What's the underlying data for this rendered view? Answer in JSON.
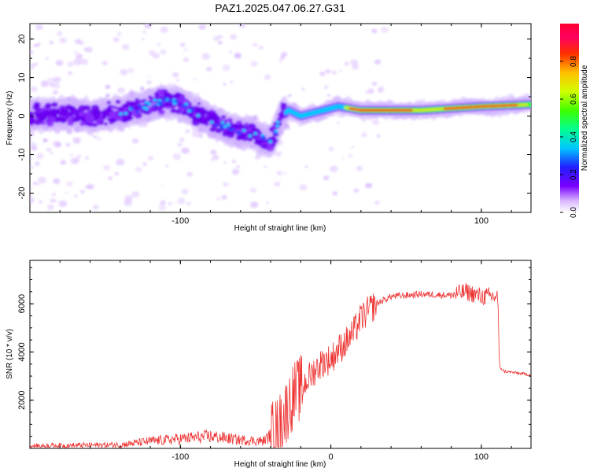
{
  "title": "PAZ1.2025.047.06.27.G31",
  "chart_data": [
    {
      "type": "heatmap",
      "xlabel": "Height of straight line (km)",
      "ylabel": "Frequency (Hz)",
      "xlim": [
        -200,
        133
      ],
      "ylim": [
        -25,
        24
      ],
      "xticks": [
        -100,
        100
      ],
      "yticks": [
        20,
        10,
        0,
        -10,
        -20
      ],
      "colorbar": {
        "label": "Normalized spectral amplitude",
        "range": [
          0,
          1
        ],
        "ticks": [
          "0.0",
          "0.2",
          "0.4",
          "0.6",
          "0.8"
        ],
        "colormap": "rainbow"
      },
      "ridge": [
        {
          "x": -200,
          "y": 0
        },
        {
          "x": -180,
          "y": 0.5
        },
        {
          "x": -160,
          "y": 0
        },
        {
          "x": -140,
          "y": 1
        },
        {
          "x": -120,
          "y": 3
        },
        {
          "x": -110,
          "y": 4
        },
        {
          "x": -100,
          "y": 3
        },
        {
          "x": -90,
          "y": 1
        },
        {
          "x": -80,
          "y": -1
        },
        {
          "x": -70,
          "y": -3
        },
        {
          "x": -60,
          "y": -4
        },
        {
          "x": -50,
          "y": -5
        },
        {
          "x": -40,
          "y": -7
        },
        {
          "x": -33,
          "y": 0
        },
        {
          "x": -28,
          "y": 1.5
        },
        {
          "x": -20,
          "y": 0
        },
        {
          "x": -10,
          "y": 1
        },
        {
          "x": 0,
          "y": 2
        },
        {
          "x": 5,
          "y": 2.5
        },
        {
          "x": 20,
          "y": 1.5
        },
        {
          "x": 60,
          "y": 1.5
        },
        {
          "x": 100,
          "y": 2.5
        },
        {
          "x": 133,
          "y": 3
        }
      ]
    },
    {
      "type": "line",
      "xlabel": "Height of straight line (km)",
      "ylabel": "SNR (10 * v/v)",
      "xlim": [
        -200,
        133
      ],
      "ylim": [
        0,
        7800
      ],
      "xticks": [
        -100,
        0,
        100
      ],
      "yticks": [
        2000,
        4000,
        6000
      ],
      "color": "#ee3333",
      "series": [
        {
          "x": -200,
          "y": 100
        },
        {
          "x": -140,
          "y": 150
        },
        {
          "x": -120,
          "y": 300
        },
        {
          "x": -100,
          "y": 400
        },
        {
          "x": -80,
          "y": 500
        },
        {
          "x": -60,
          "y": 350
        },
        {
          "x": -45,
          "y": 300
        },
        {
          "x": -35,
          "y": 800
        },
        {
          "x": -30,
          "y": 1500
        },
        {
          "x": -25,
          "y": 2200
        },
        {
          "x": -20,
          "y": 2500
        },
        {
          "x": -15,
          "y": 2900
        },
        {
          "x": -10,
          "y": 3300
        },
        {
          "x": -5,
          "y": 3600
        },
        {
          "x": 0,
          "y": 3700
        },
        {
          "x": 5,
          "y": 4100
        },
        {
          "x": 10,
          "y": 4400
        },
        {
          "x": 15,
          "y": 4800
        },
        {
          "x": 20,
          "y": 5400
        },
        {
          "x": 30,
          "y": 6000
        },
        {
          "x": 40,
          "y": 6300
        },
        {
          "x": 60,
          "y": 6400
        },
        {
          "x": 80,
          "y": 6350
        },
        {
          "x": 90,
          "y": 6500
        },
        {
          "x": 100,
          "y": 6300
        },
        {
          "x": 111,
          "y": 6300
        },
        {
          "x": 112,
          "y": 3400
        },
        {
          "x": 115,
          "y": 3200
        },
        {
          "x": 133,
          "y": 3050
        }
      ]
    }
  ]
}
